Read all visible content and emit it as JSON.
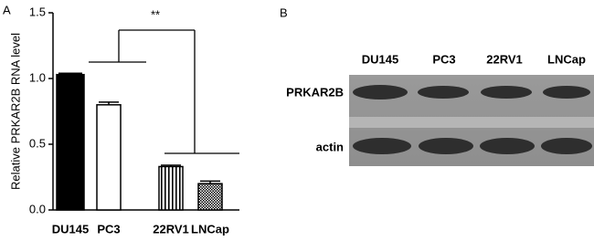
{
  "panel_labels": [
    "A",
    "B"
  ],
  "chart_data": {
    "type": "bar",
    "y_label": "Relative PRKAR2B RNA level",
    "annotation": "**",
    "categories": [
      "DU145",
      "PC3",
      "22RV1",
      "LNCap"
    ],
    "values": [
      1.03,
      0.8,
      0.33,
      0.2
    ],
    "errors": [
      0.01,
      0.02,
      0.01,
      0.02
    ],
    "patterns": [
      "solid",
      "open",
      "stripes",
      "checker"
    ],
    "color": "#000000",
    "ylim": [
      0,
      1.5
    ],
    "yticks": [
      {
        "value": 0,
        "label": "0.0"
      },
      {
        "value": 0.5,
        "label": "0.5"
      },
      {
        "value": 1,
        "label": "1.0"
      },
      {
        "value": 1.5,
        "label": "1.5"
      }
    ],
    "grid": false
  },
  "blot": {
    "columns": [
      "DU145",
      "PC3",
      "22RV1",
      "LNCap"
    ],
    "rows": [
      "PRKAR2B",
      "actin"
    ]
  }
}
